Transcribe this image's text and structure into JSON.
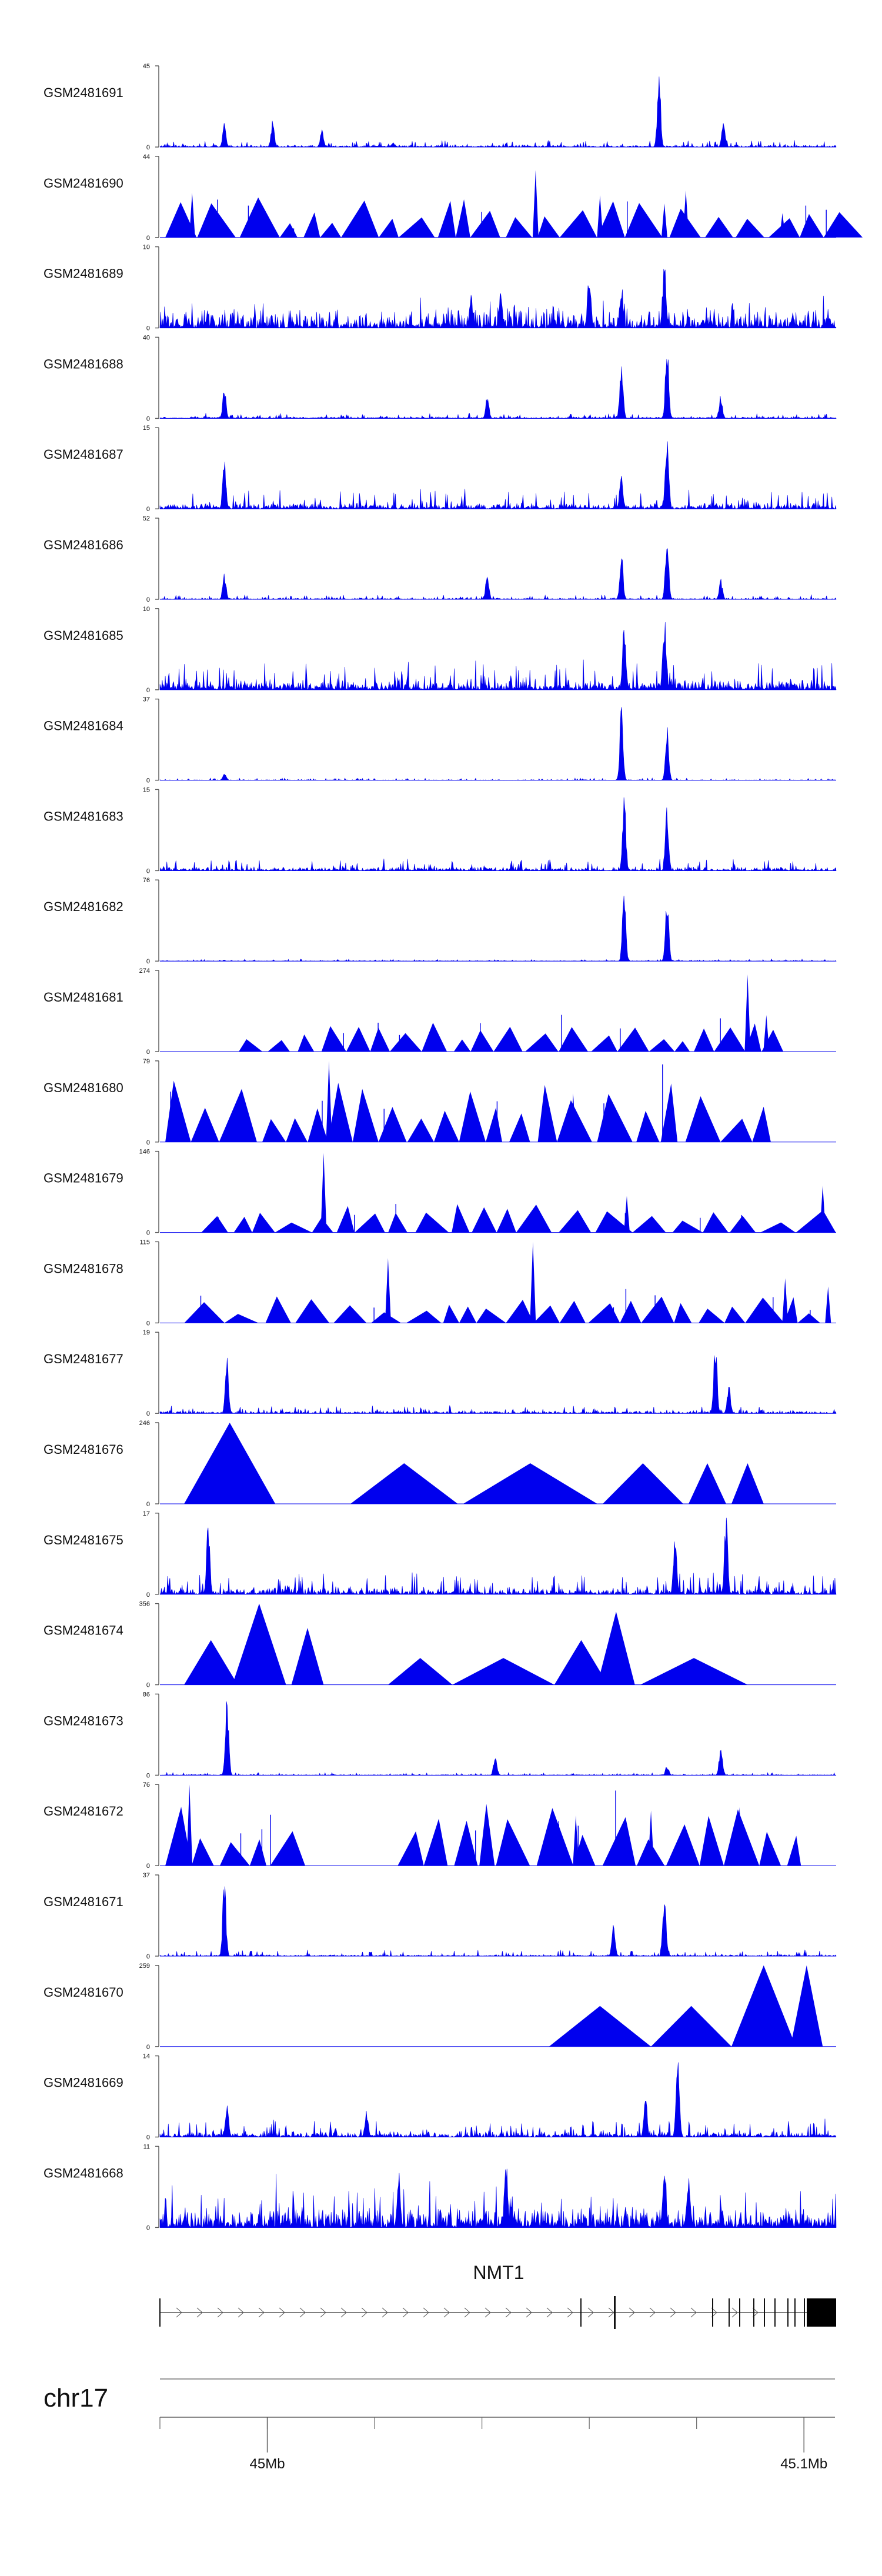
{
  "chart_data": {
    "type": "area",
    "title": "",
    "x_range": [
      44.98,
      45.106
    ],
    "tracks": [
      {
        "name": "GSM2481691",
        "ymax": 45,
        "style": "dense",
        "gap": [],
        "base": 0.03,
        "noise": 0.07,
        "spikes": [
          [
            44.992,
            0.32
          ],
          [
            45.001,
            0.35
          ],
          [
            45.0102,
            0.22
          ],
          [
            45.0235,
            0.06
          ],
          [
            45.073,
            1.0
          ],
          [
            45.085,
            0.32
          ]
        ]
      },
      {
        "name": "GSM2481690",
        "ymax": 44,
        "style": "tri",
        "gap": [
          [
            45.011,
            45.013
          ]
        ],
        "base": 0.34,
        "noise": 0.1,
        "spikes": [
          [
            44.986,
            0.55
          ],
          [
            45.05,
            0.83
          ],
          [
            45.062,
            0.52
          ],
          [
            45.074,
            0.42
          ],
          [
            45.078,
            0.58
          ],
          [
            45.096,
            0.3
          ]
        ]
      },
      {
        "name": "GSM2481689",
        "ymax": 10,
        "style": "dense",
        "gap": [],
        "base": 0.24,
        "noise": 0.24,
        "spikes": [
          [
            45.038,
            0.45
          ],
          [
            45.0435,
            0.47
          ],
          [
            45.06,
            0.78
          ],
          [
            45.066,
            0.58
          ],
          [
            45.074,
            0.98
          ]
        ]
      },
      {
        "name": "GSM2481688",
        "ymax": 40,
        "style": "dense",
        "gap": [],
        "base": 0.025,
        "noise": 0.05,
        "spikes": [
          [
            44.992,
            0.42
          ],
          [
            45.041,
            0.28
          ],
          [
            45.066,
            0.72
          ],
          [
            45.0745,
            1.0
          ],
          [
            45.0845,
            0.3
          ]
        ]
      },
      {
        "name": "GSM2481687",
        "ymax": 15,
        "style": "dense",
        "gap": [],
        "base": 0.08,
        "noise": 0.2,
        "spikes": [
          [
            44.992,
            0.62
          ],
          [
            45.066,
            0.42
          ],
          [
            45.0745,
            0.98
          ]
        ]
      },
      {
        "name": "GSM2481686",
        "ymax": 52,
        "style": "dense",
        "gap": [],
        "base": 0.02,
        "noise": 0.05,
        "spikes": [
          [
            44.992,
            0.34
          ],
          [
            45.041,
            0.32
          ],
          [
            45.066,
            0.6
          ],
          [
            45.0745,
            0.92
          ],
          [
            45.0845,
            0.26
          ]
        ]
      },
      {
        "name": "GSM2481685",
        "ymax": 10,
        "style": "dense",
        "gap": [],
        "base": 0.14,
        "noise": 0.28,
        "spikes": [
          [
            45.0665,
            0.95
          ],
          [
            45.074,
            0.96
          ]
        ]
      },
      {
        "name": "GSM2481684",
        "ymax": 37,
        "style": "dense",
        "gap": [],
        "base": 0.008,
        "noise": 0.025,
        "spikes": [
          [
            44.992,
            0.1
          ],
          [
            45.066,
            0.95
          ],
          [
            45.0745,
            0.7
          ]
        ]
      },
      {
        "name": "GSM2481683",
        "ymax": 15,
        "style": "dense",
        "gap": [],
        "base": 0.05,
        "noise": 0.12,
        "spikes": [
          [
            45.0665,
            0.98
          ],
          [
            45.0745,
            0.82
          ]
        ]
      },
      {
        "name": "GSM2481682",
        "ymax": 76,
        "style": "dense",
        "gap": [],
        "base": 0.008,
        "noise": 0.02,
        "spikes": [
          [
            45.0665,
            0.95
          ],
          [
            45.0745,
            0.8
          ]
        ]
      },
      {
        "name": "GSM2481681",
        "ymax": 274,
        "style": "tri",
        "gap": [
          [
            44.98,
            44.99
          ],
          [
            45.1,
            45.106
          ]
        ],
        "base": 0.24,
        "noise": 0.04,
        "spikes": [
          [
            45.0895,
            0.95
          ],
          [
            45.093,
            0.45
          ]
        ]
      },
      {
        "name": "GSM2481680",
        "ymax": 79,
        "style": "tri",
        "gap": [
          [
            45.0123,
            45.0138
          ],
          [
            45.1,
            45.106
          ]
        ],
        "base": 0.52,
        "noise": 0.05,
        "spikes": [
          [
            45.0115,
            1.0
          ],
          [
            45.057,
            0.6
          ]
        ]
      },
      {
        "name": "GSM2481679",
        "ymax": 146,
        "style": "tri",
        "gap": [
          [
            44.98,
            44.983
          ]
        ],
        "base": 0.24,
        "noise": 0.06,
        "spikes": [
          [
            45.0105,
            0.98
          ],
          [
            45.1035,
            0.58
          ],
          [
            45.067,
            0.45
          ]
        ]
      },
      {
        "name": "GSM2481678",
        "ymax": 115,
        "style": "tri",
        "gap": [
          [
            44.98,
            44.983
          ]
        ],
        "base": 0.22,
        "noise": 0.1,
        "spikes": [
          [
            45.0225,
            0.8
          ],
          [
            45.0495,
            1.0
          ],
          [
            45.0965,
            0.55
          ],
          [
            45.1045,
            0.45
          ]
        ]
      },
      {
        "name": "GSM2481677",
        "ymax": 19,
        "style": "dense",
        "gap": [],
        "base": 0.04,
        "noise": 0.08,
        "spikes": [
          [
            44.9925,
            0.72
          ],
          [
            45.0835,
            0.98
          ],
          [
            45.086,
            0.38
          ]
        ]
      },
      {
        "name": "GSM2481676",
        "ymax": 246,
        "style": "tri_big",
        "gap": [],
        "base": 0,
        "noise": 0,
        "spikes": []
      },
      {
        "name": "GSM2481675",
        "ymax": 17,
        "style": "dense",
        "gap": [],
        "base": 0.1,
        "noise": 0.22,
        "spikes": [
          [
            44.989,
            0.92
          ],
          [
            45.0855,
            1.0
          ],
          [
            45.076,
            0.78
          ]
        ]
      },
      {
        "name": "GSM2481674",
        "ymax": 356,
        "style": "tri_big",
        "gap": [],
        "base": 0,
        "noise": 0,
        "spikes": []
      },
      {
        "name": "GSM2481673",
        "ymax": 86,
        "style": "dense",
        "gap": [],
        "base": 0.01,
        "noise": 0.03,
        "spikes": [
          [
            44.9925,
            1.0
          ],
          [
            45.0425,
            0.28
          ],
          [
            45.0845,
            0.38
          ],
          [
            45.0745,
            0.12
          ]
        ]
      },
      {
        "name": "GSM2481672",
        "ymax": 76,
        "style": "tri",
        "gap": [
          [
            45.011,
            45.0225
          ],
          [
            45.1,
            45.106
          ]
        ],
        "base": 0.52,
        "noise": 0.08,
        "spikes": [
          [
            44.9855,
            1.0
          ],
          [
            45.0575,
            0.62
          ],
          [
            45.0715,
            0.68
          ],
          [
            45.088,
            0.72
          ]
        ]
      },
      {
        "name": "GSM2481671",
        "ymax": 37,
        "style": "dense",
        "gap": [],
        "base": 0.02,
        "noise": 0.07,
        "spikes": [
          [
            44.992,
            1.0
          ],
          [
            45.074,
            0.78
          ],
          [
            45.0645,
            0.4
          ]
        ]
      },
      {
        "name": "GSM2481670",
        "ymax": 259,
        "style": "tri_big",
        "gap": [],
        "base": 0,
        "noise": 0,
        "spikes": []
      },
      {
        "name": "GSM2481669",
        "ymax": 14,
        "style": "dense",
        "gap": [],
        "base": 0.08,
        "noise": 0.17,
        "spikes": [
          [
            45.0765,
            1.0
          ],
          [
            45.0705,
            0.52
          ],
          [
            44.9925,
            0.42
          ],
          [
            45.0185,
            0.35
          ]
        ]
      },
      {
        "name": "GSM2481668",
        "ymax": 11,
        "style": "dense",
        "gap": [],
        "base": 0.3,
        "noise": 0.42,
        "spikes": [
          [
            45.0445,
            0.92
          ],
          [
            45.074,
            0.9
          ],
          [
            45.0785,
            0.68
          ],
          [
            45.0245,
            0.72
          ]
        ]
      }
    ],
    "big_triangles": {
      "GSM2481676": [
        [
          44.9845,
          45.0015,
          1.0
        ],
        [
          45.0155,
          45.0355,
          0.5
        ],
        [
          45.0365,
          45.0615,
          0.5
        ],
        [
          45.0625,
          45.0775,
          0.5
        ],
        [
          45.0785,
          45.0855,
          0.5
        ],
        [
          45.0865,
          45.0925,
          0.5
        ]
      ],
      "GSM2481674": [
        [
          44.9845,
          44.9945,
          0.55
        ],
        [
          44.9935,
          45.0035,
          1.0
        ],
        [
          45.0045,
          45.0105,
          0.7
        ],
        [
          45.0225,
          45.0345,
          0.33
        ],
        [
          45.0345,
          45.0535,
          0.33
        ],
        [
          45.0535,
          45.0635,
          0.55
        ],
        [
          45.0615,
          45.0685,
          0.9
        ],
        [
          45.0695,
          45.0895,
          0.33
        ]
      ],
      "GSM2481670": [
        [
          45.0525,
          45.0715,
          0.5
        ],
        [
          45.0715,
          45.0865,
          0.5
        ],
        [
          45.0865,
          45.0985,
          1.0
        ],
        [
          45.0975,
          45.1035,
          1.0
        ]
      ]
    },
    "gene": {
      "name": "NMT1",
      "chromosome": "chr17"
    },
    "ticks": [
      {
        "pos": 45.0,
        "label": "45Mb"
      },
      {
        "pos": 45.1,
        "label": "45.1Mb"
      }
    ]
  }
}
